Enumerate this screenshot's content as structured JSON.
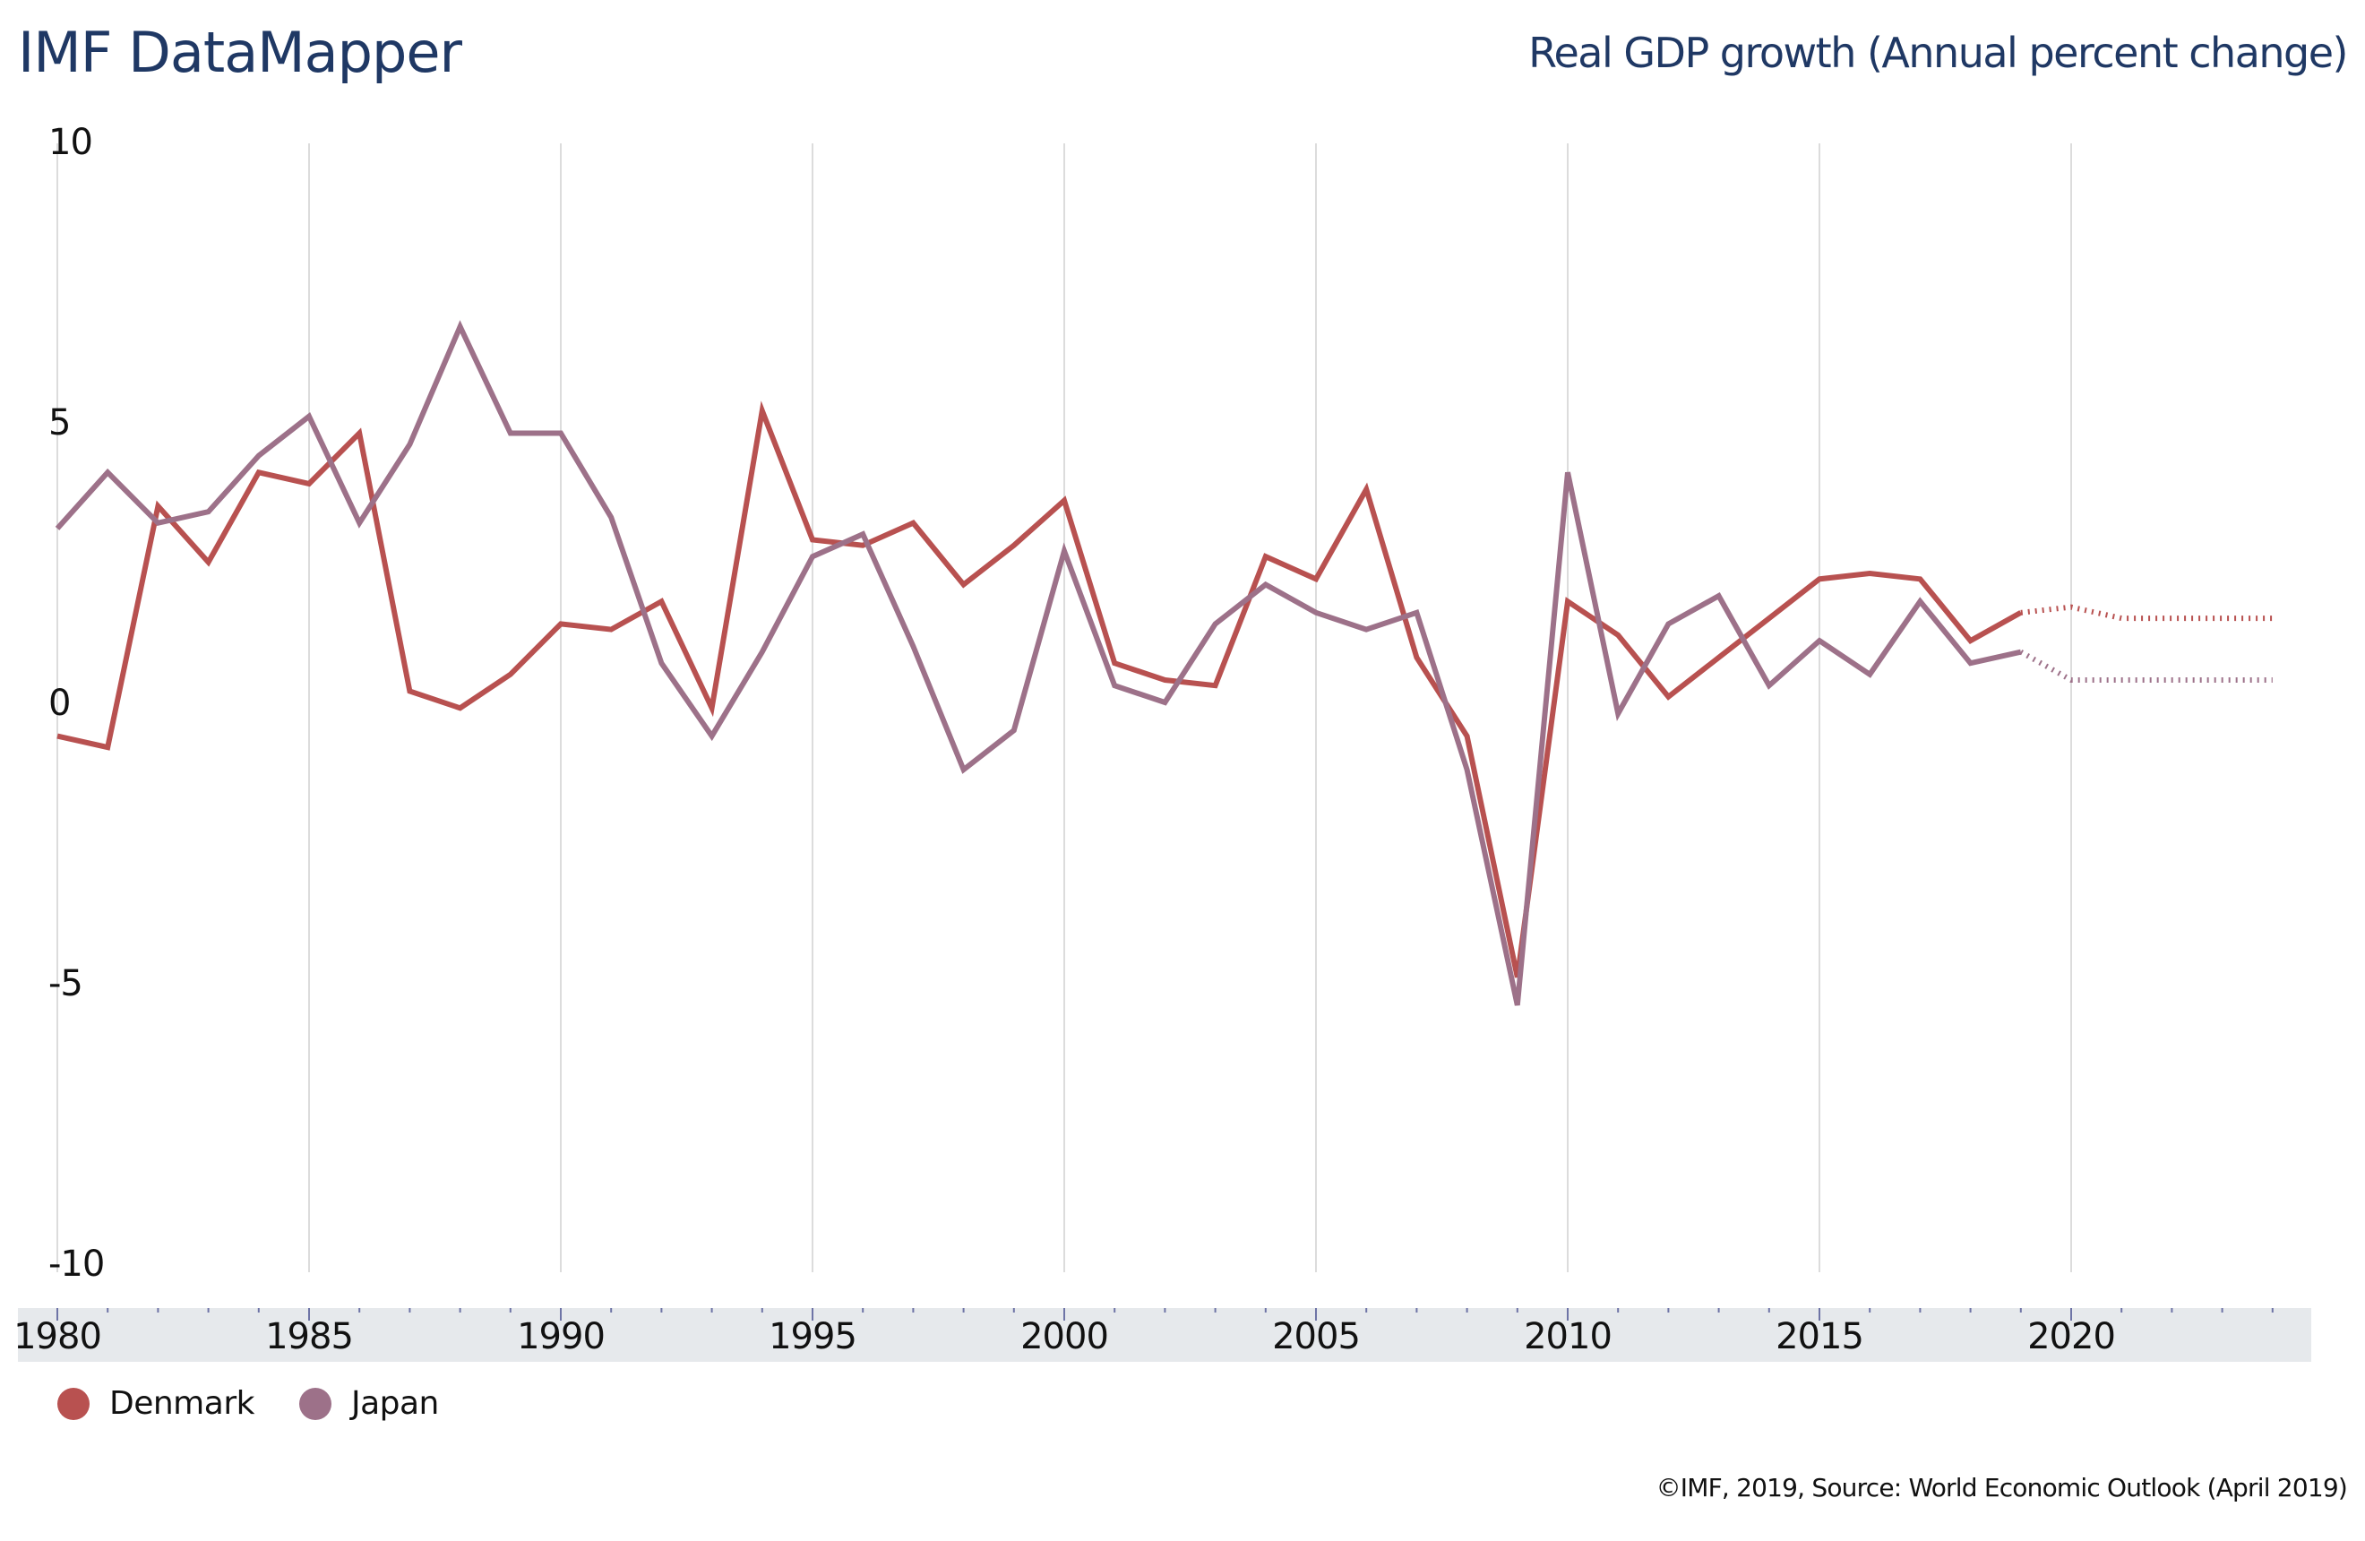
{
  "header": {
    "title": "IMF DataMapper",
    "subtitle": "Real GDP growth (Annual percent change)"
  },
  "footer": {
    "source": "©IMF, 2019, Source: World Economic Outlook (April 2019)"
  },
  "colors": {
    "title": "#1f3864",
    "denmark": "#b85150",
    "japan": "#9d7189",
    "axis_band": "#e6e9ec",
    "tick": "#6e74a6",
    "grid": "#dcdcdc"
  },
  "legend": [
    {
      "label": "Denmark",
      "color": "#b85150"
    },
    {
      "label": "Japan",
      "color": "#9d7189"
    }
  ],
  "chart_data": {
    "type": "line",
    "title": "Real GDP growth (Annual percent change)",
    "xlabel": "",
    "ylabel": "",
    "xlim": [
      1980,
      2024
    ],
    "ylim": [
      -10,
      10
    ],
    "y_ticks": [
      10,
      5,
      0,
      -5,
      -10
    ],
    "y_tick_labels": [
      "10",
      "5",
      "0",
      "-5",
      "-10"
    ],
    "x_ticks": [
      1980,
      1985,
      1990,
      1995,
      2000,
      2005,
      2010,
      2015,
      2020
    ],
    "x_tick_labels": [
      "1980",
      "1985",
      "1990",
      "1995",
      "2000",
      "2005",
      "2010",
      "2015",
      "2020"
    ],
    "grid": "vertical",
    "legend_position": "bottom-left",
    "projection_start": 2019,
    "x": [
      1980,
      1981,
      1982,
      1983,
      1984,
      1985,
      1986,
      1987,
      1988,
      1989,
      1990,
      1991,
      1992,
      1993,
      1994,
      1995,
      1996,
      1997,
      1998,
      1999,
      2000,
      2001,
      2002,
      2003,
      2004,
      2005,
      2006,
      2007,
      2008,
      2009,
      2010,
      2011,
      2012,
      2013,
      2014,
      2015,
      2016,
      2017,
      2018,
      2019,
      2020,
      2021,
      2022,
      2023,
      2024
    ],
    "series": [
      {
        "name": "Denmark",
        "color": "#b85150",
        "values": [
          -0.6,
          -0.8,
          3.5,
          2.5,
          4.1,
          3.9,
          4.8,
          0.2,
          -0.1,
          0.5,
          1.4,
          1.3,
          1.8,
          -0.1,
          5.2,
          2.9,
          2.8,
          3.2,
          2.1,
          2.8,
          3.6,
          0.7,
          0.4,
          0.3,
          2.6,
          2.2,
          3.8,
          0.8,
          -0.6,
          -4.9,
          1.8,
          1.2,
          0.1,
          0.8,
          1.5,
          2.2,
          2.3,
          2.2,
          1.1,
          1.6,
          1.7,
          1.5,
          1.5,
          1.5,
          1.5
        ]
      },
      {
        "name": "Japan",
        "color": "#9d7189",
        "values": [
          3.1,
          4.1,
          3.2,
          3.4,
          4.4,
          5.1,
          3.2,
          4.6,
          6.7,
          4.8,
          4.8,
          3.3,
          0.7,
          -0.6,
          0.9,
          2.6,
          3.0,
          1.0,
          -1.2,
          -0.5,
          2.7,
          0.3,
          0.0,
          1.4,
          2.1,
          1.6,
          1.3,
          1.6,
          -1.2,
          -5.4,
          4.1,
          -0.2,
          1.4,
          1.9,
          0.3,
          1.1,
          0.5,
          1.8,
          0.7,
          0.9,
          0.4,
          0.4,
          0.4,
          0.4,
          0.4
        ]
      }
    ]
  }
}
